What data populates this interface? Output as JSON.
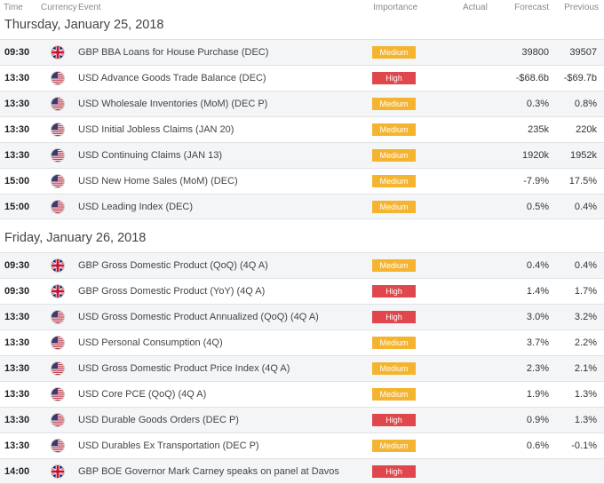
{
  "columns": {
    "time": "Time",
    "currency": "Currency",
    "event": "Event",
    "importance": "Importance",
    "actual": "Actual",
    "forecast": "Forecast",
    "previous": "Previous"
  },
  "days": [
    {
      "title": "Thursday, January 25, 2018",
      "rows": [
        {
          "time": "09:30",
          "flag": "uk-flag-icon",
          "event": "GBP BBA Loans for House Purchase (DEC)",
          "importance": "Medium",
          "level": "medium",
          "actual": "",
          "forecast": "39800",
          "previous": "39507"
        },
        {
          "time": "13:30",
          "flag": "us-flag-icon",
          "event": "USD Advance Goods Trade Balance (DEC)",
          "importance": "High",
          "level": "high",
          "actual": "",
          "forecast": "-$68.6b",
          "previous": "-$69.7b"
        },
        {
          "time": "13:30",
          "flag": "us-flag-icon",
          "event": "USD Wholesale Inventories (MoM) (DEC P)",
          "importance": "Medium",
          "level": "medium",
          "actual": "",
          "forecast": "0.3%",
          "previous": "0.8%"
        },
        {
          "time": "13:30",
          "flag": "us-flag-icon",
          "event": "USD Initial Jobless Claims (JAN 20)",
          "importance": "Medium",
          "level": "medium",
          "actual": "",
          "forecast": "235k",
          "previous": "220k"
        },
        {
          "time": "13:30",
          "flag": "us-flag-icon",
          "event": "USD Continuing Claims (JAN 13)",
          "importance": "Medium",
          "level": "medium",
          "actual": "",
          "forecast": "1920k",
          "previous": "1952k"
        },
        {
          "time": "15:00",
          "flag": "us-flag-icon",
          "event": "USD New Home Sales (MoM) (DEC)",
          "importance": "Medium",
          "level": "medium",
          "actual": "",
          "forecast": "-7.9%",
          "previous": "17.5%"
        },
        {
          "time": "15:00",
          "flag": "us-flag-icon",
          "event": "USD Leading Index (DEC)",
          "importance": "Medium",
          "level": "medium",
          "actual": "",
          "forecast": "0.5%",
          "previous": "0.4%"
        }
      ]
    },
    {
      "title": "Friday, January 26, 2018",
      "rows": [
        {
          "time": "09:30",
          "flag": "uk-flag-icon",
          "event": "GBP Gross Domestic Product (QoQ) (4Q A)",
          "importance": "Medium",
          "level": "medium",
          "actual": "",
          "forecast": "0.4%",
          "previous": "0.4%"
        },
        {
          "time": "09:30",
          "flag": "uk-flag-icon",
          "event": "GBP Gross Domestic Product (YoY) (4Q A)",
          "importance": "High",
          "level": "high",
          "actual": "",
          "forecast": "1.4%",
          "previous": "1.7%"
        },
        {
          "time": "13:30",
          "flag": "us-flag-icon",
          "event": "USD Gross Domestic Product Annualized (QoQ) (4Q A)",
          "importance": "High",
          "level": "high",
          "actual": "",
          "forecast": "3.0%",
          "previous": "3.2%"
        },
        {
          "time": "13:30",
          "flag": "us-flag-icon",
          "event": "USD Personal Consumption (4Q)",
          "importance": "Medium",
          "level": "medium",
          "actual": "",
          "forecast": "3.7%",
          "previous": "2.2%"
        },
        {
          "time": "13:30",
          "flag": "us-flag-icon",
          "event": "USD Gross Domestic Product Price Index (4Q A)",
          "importance": "Medium",
          "level": "medium",
          "actual": "",
          "forecast": "2.3%",
          "previous": "2.1%"
        },
        {
          "time": "13:30",
          "flag": "us-flag-icon",
          "event": "USD Core PCE (QoQ) (4Q A)",
          "importance": "Medium",
          "level": "medium",
          "actual": "",
          "forecast": "1.9%",
          "previous": "1.3%"
        },
        {
          "time": "13:30",
          "flag": "us-flag-icon",
          "event": "USD Durable Goods Orders (DEC P)",
          "importance": "High",
          "level": "high",
          "actual": "",
          "forecast": "0.9%",
          "previous": "1.3%"
        },
        {
          "time": "13:30",
          "flag": "us-flag-icon",
          "event": "USD Durables Ex Transportation (DEC P)",
          "importance": "Medium",
          "level": "medium",
          "actual": "",
          "forecast": "0.6%",
          "previous": "-0.1%"
        },
        {
          "time": "14:00",
          "flag": "uk-flag-icon",
          "event": "GBP BOE Governor Mark Carney speaks on panel at Davos",
          "importance": "High",
          "level": "high",
          "actual": "",
          "forecast": "",
          "previous": ""
        }
      ]
    }
  ],
  "colors": {
    "medium": "#f5b430",
    "high": "#e0474c",
    "row_alt": "#f4f5f6"
  }
}
